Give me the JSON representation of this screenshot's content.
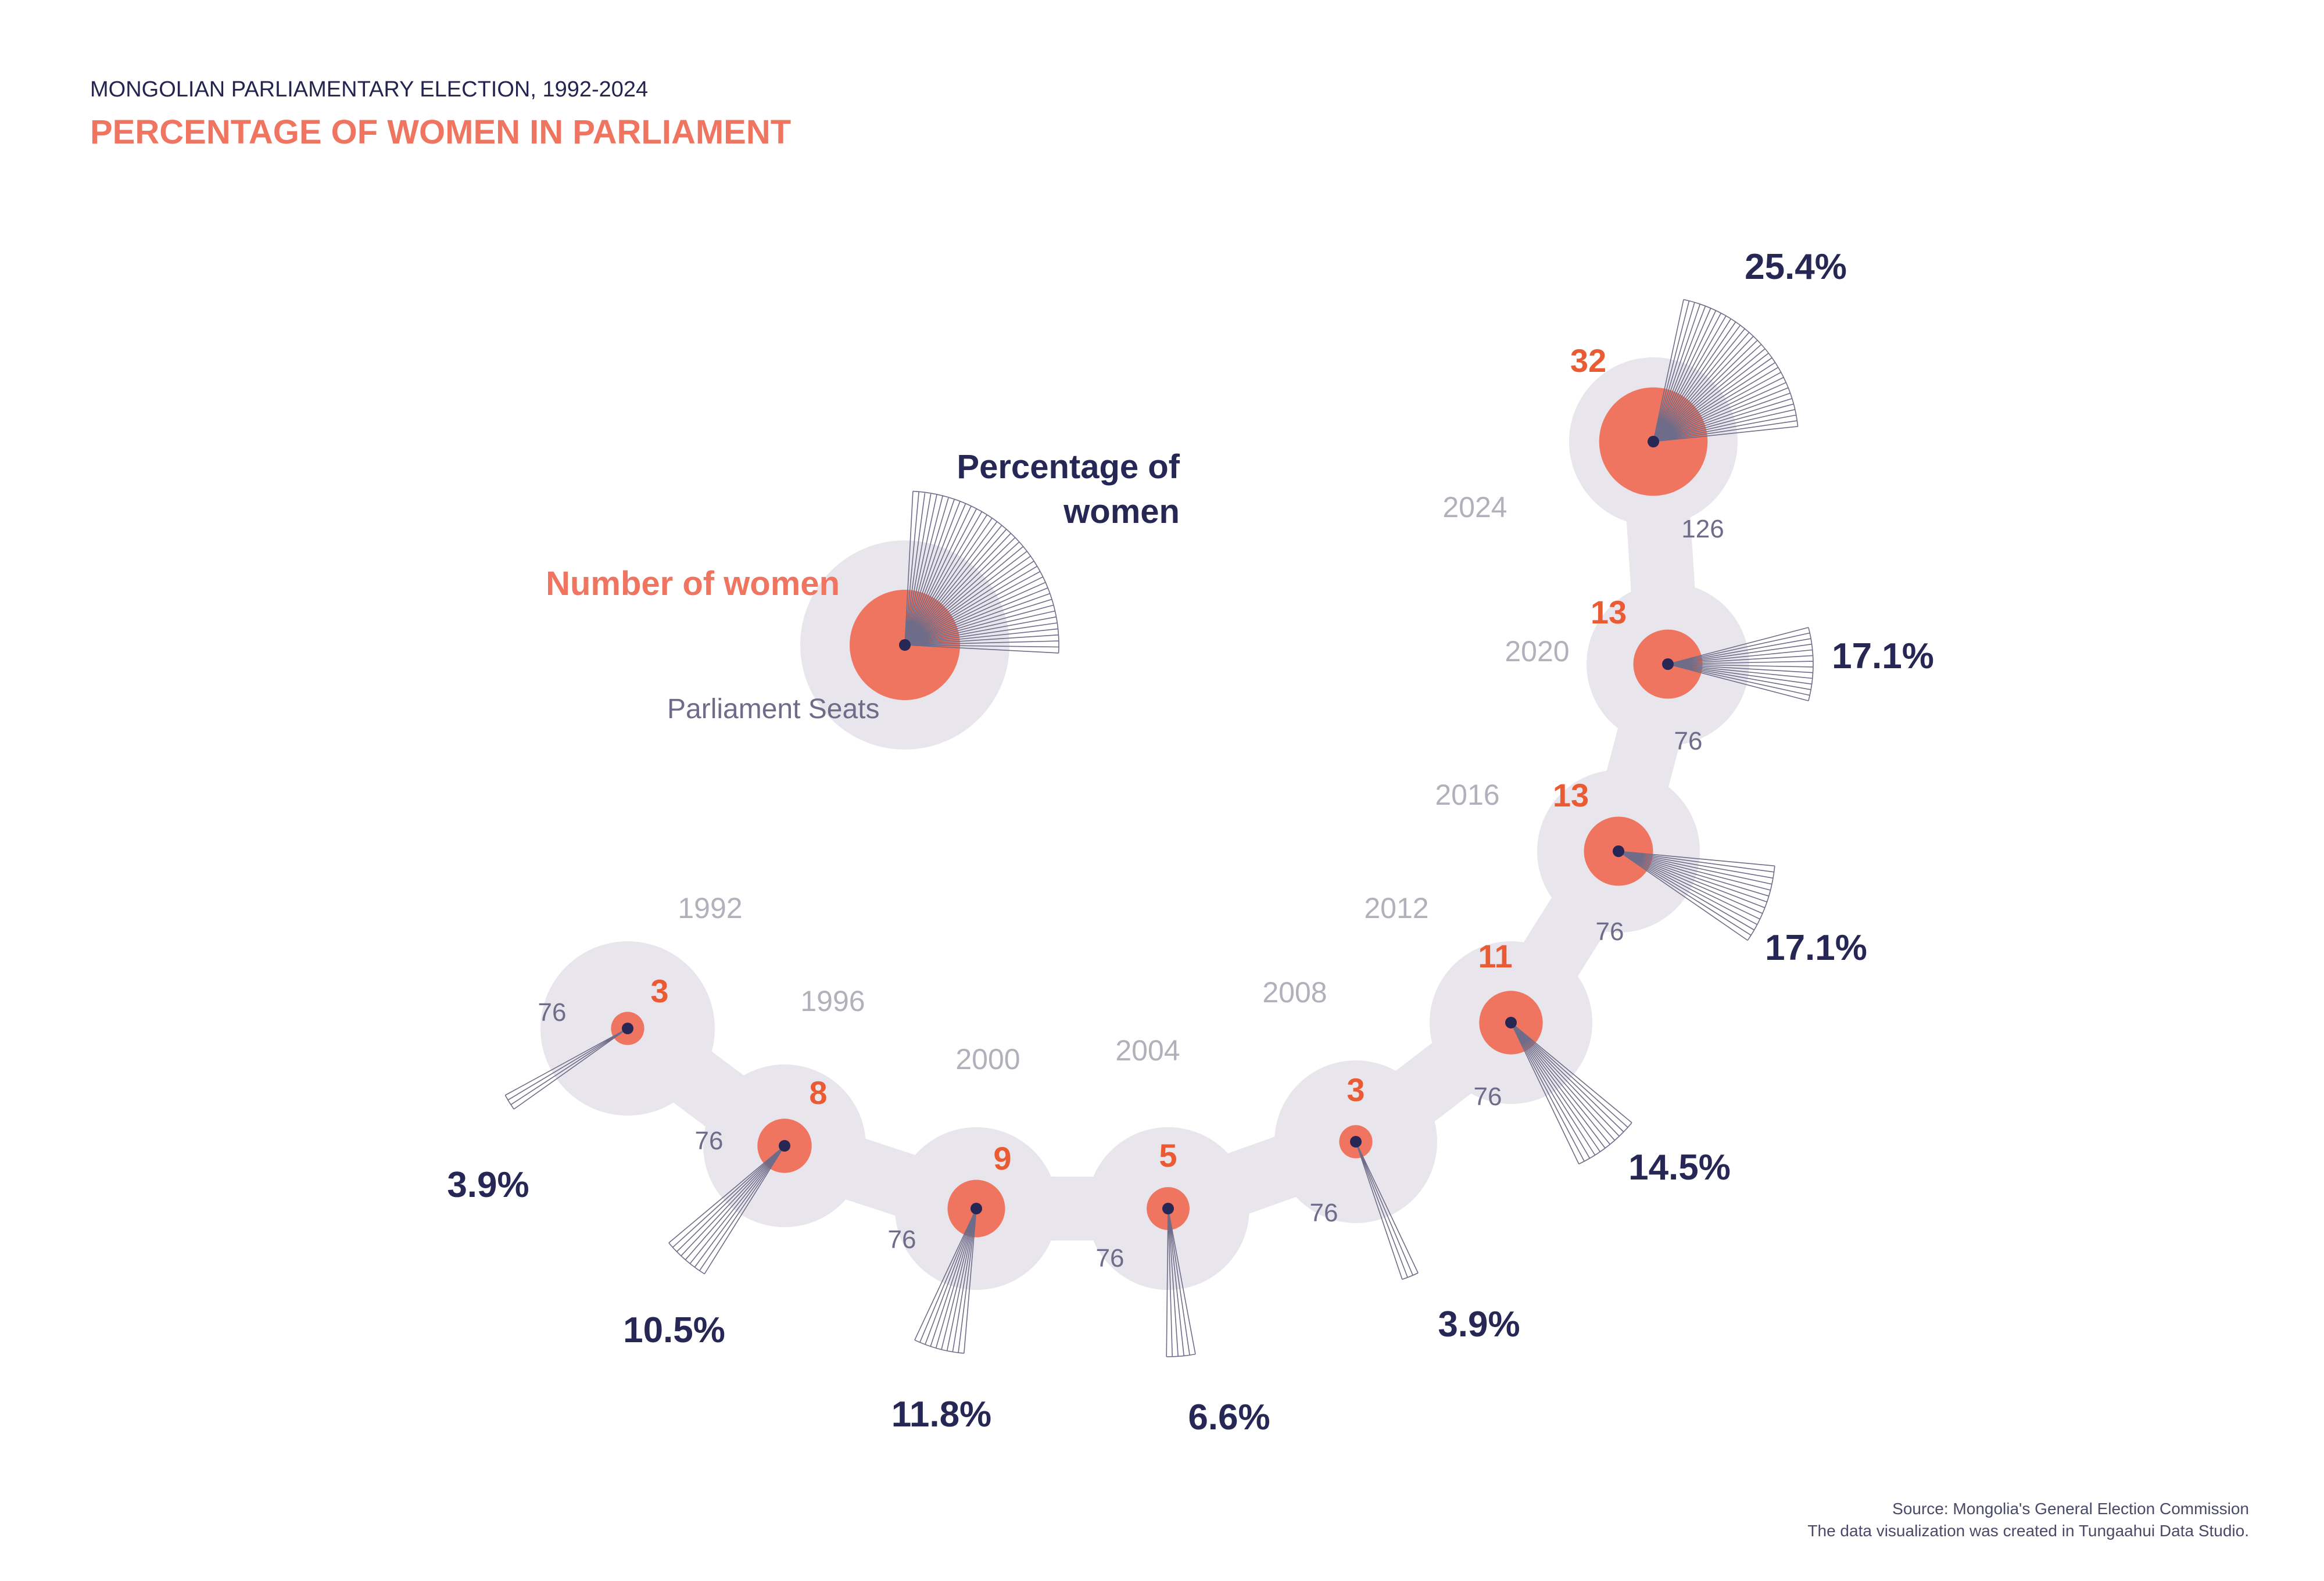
{
  "header": {
    "subtitle": "MONGOLIAN PARLIAMENTARY ELECTION, 1992-2024",
    "title": "PERCENTAGE OF WOMEN IN PARLIAMENT"
  },
  "legend": {
    "women_label": "Number of women",
    "pct_label_line1": "Percentage of",
    "pct_label_line2": "women",
    "seats_label": "Parliament Seats"
  },
  "footer": {
    "source": "Source: Mongolia's General Election Commission",
    "credit": "The data visualization was created in Tungaahui Data Studio."
  },
  "colors": {
    "orange": "#f07560",
    "navy": "#262755",
    "halo": "#e8e6ec",
    "fan": "#6e6c88"
  },
  "chart_data": {
    "type": "radial-fan",
    "x": [
      "1992",
      "1996",
      "2000",
      "2004",
      "2008",
      "2012",
      "2016",
      "2020",
      "2024"
    ],
    "series": [
      {
        "name": "Number of women",
        "values": [
          3,
          8,
          9,
          5,
          3,
          11,
          13,
          13,
          32
        ]
      },
      {
        "name": "Parliament Seats",
        "values": [
          76,
          76,
          76,
          76,
          76,
          76,
          76,
          76,
          126
        ]
      },
      {
        "name": "Percentage of women",
        "values": [
          3.9,
          10.5,
          11.8,
          6.6,
          3.9,
          14.5,
          17.1,
          17.1,
          25.4
        ]
      }
    ],
    "points": [
      {
        "year": "1992",
        "women": "3",
        "seats": "76",
        "pct": "3.9%"
      },
      {
        "year": "1996",
        "women": "8",
        "seats": "76",
        "pct": "10.5%"
      },
      {
        "year": "2000",
        "women": "9",
        "seats": "76",
        "pct": "11.8%"
      },
      {
        "year": "2004",
        "women": "5",
        "seats": "76",
        "pct": "6.6%"
      },
      {
        "year": "2008",
        "women": "3",
        "seats": "76",
        "pct": "3.9%"
      },
      {
        "year": "2012",
        "women": "11",
        "seats": "76",
        "pct": "14.5%"
      },
      {
        "year": "2016",
        "women": "13",
        "seats": "76",
        "pct": "17.1%"
      },
      {
        "year": "2020",
        "women": "13",
        "seats": "76",
        "pct": "17.1%"
      },
      {
        "year": "2024",
        "women": "32",
        "seats": "126",
        "pct": "25.4%"
      }
    ]
  }
}
